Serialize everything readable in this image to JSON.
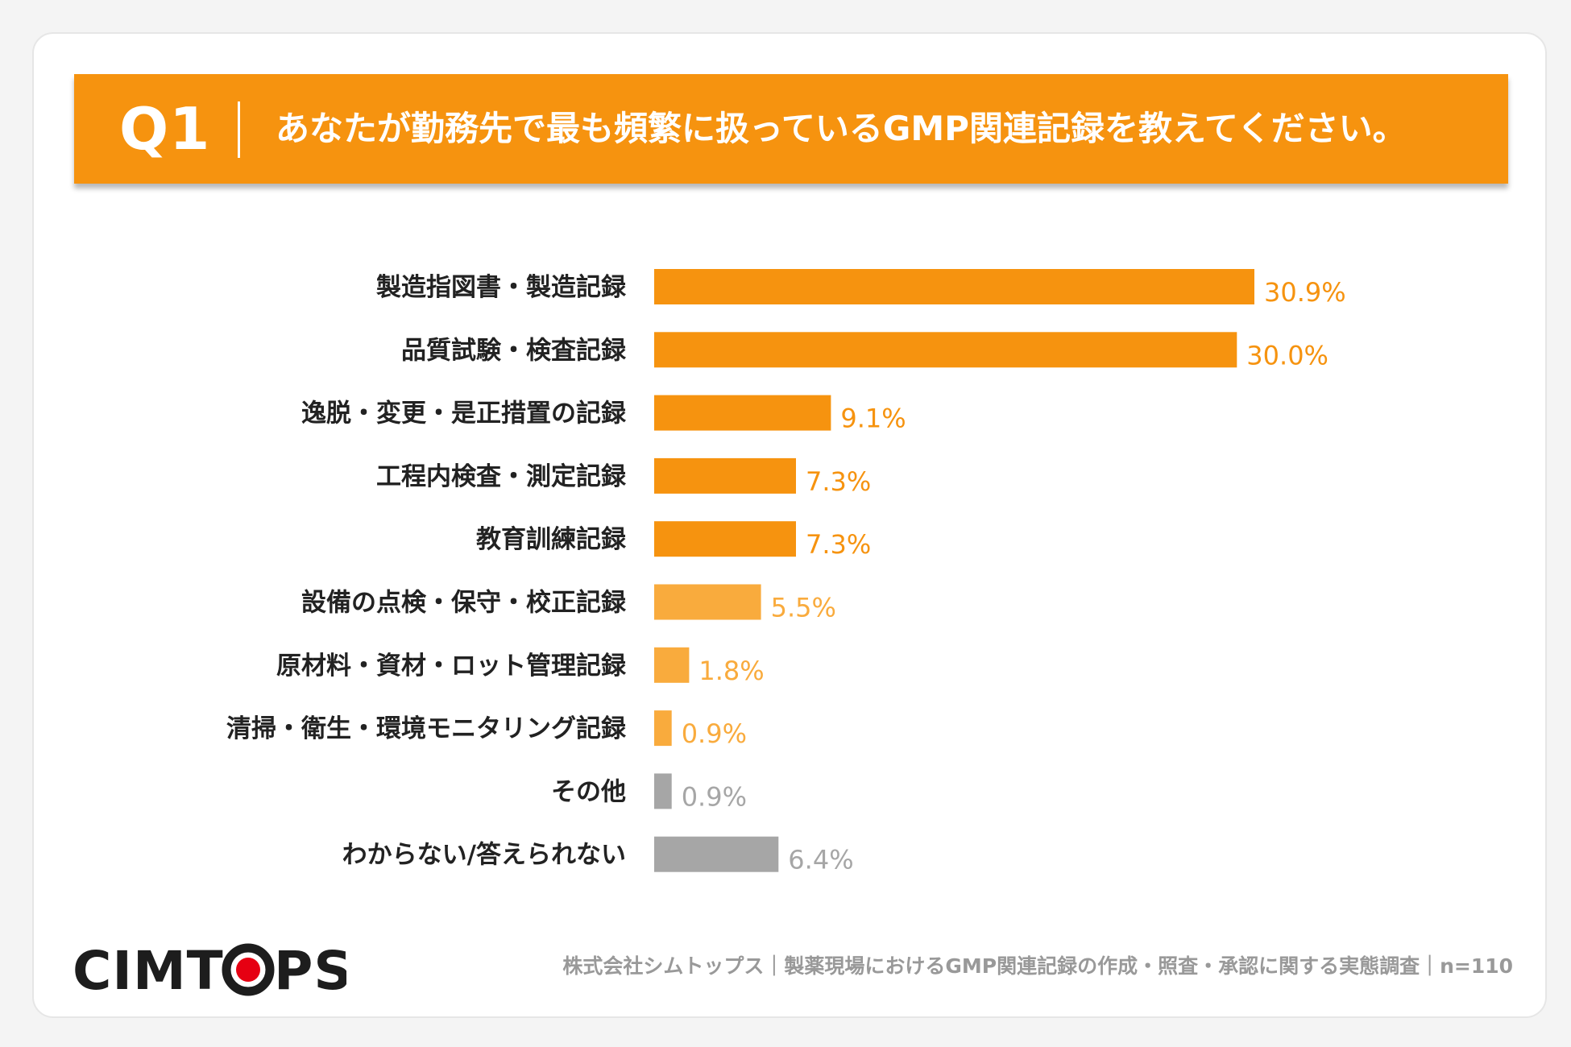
{
  "question": {
    "label": "Q1",
    "text": "あなたが勤務先で最も頻繁に扱っているGMP関連記録を教えてください。"
  },
  "colors": {
    "banner": "#f6930f",
    "bar_dark": "#f6930f",
    "bar_light": "#f9ab3d",
    "bar_gray": "#a6a6a6",
    "label_text": "#222222"
  },
  "chart_data": {
    "type": "bar",
    "orientation": "horizontal",
    "title": "",
    "xlabel": "",
    "ylabel": "",
    "unit": "%",
    "categories": [
      "製造指図書・製造記録",
      "品質試験・検査記録",
      "逸脱・変更・是正措置の記録",
      "工程内検査・測定記録",
      "教育訓練記録",
      "設備の点検・保守・校正記録",
      "原材料・資材・ロット管理記録",
      "清掃・衛生・環境モニタリング記録",
      "その他",
      "わからない/答えられない"
    ],
    "values": [
      30.9,
      30.0,
      9.1,
      7.3,
      7.3,
      5.5,
      1.8,
      0.9,
      0.9,
      6.4
    ],
    "value_labels": [
      "30.9%",
      "30.0%",
      "9.1%",
      "7.3%",
      "7.3%",
      "5.5%",
      "1.8%",
      "0.9%",
      "0.9%",
      "6.4%"
    ],
    "bar_color_groups": [
      "dark",
      "dark",
      "dark",
      "dark",
      "dark",
      "light",
      "light",
      "light",
      "gray",
      "gray"
    ],
    "xlim": [
      0,
      30.9
    ],
    "grid": false,
    "legend": "none"
  },
  "logo": {
    "text_before": "CIMT",
    "text_after": "PS"
  },
  "footer": {
    "note": "株式会社シムトップス｜製薬現場におけるGMP関連記録の作成・照査・承認に関する実態調査｜n=110"
  }
}
